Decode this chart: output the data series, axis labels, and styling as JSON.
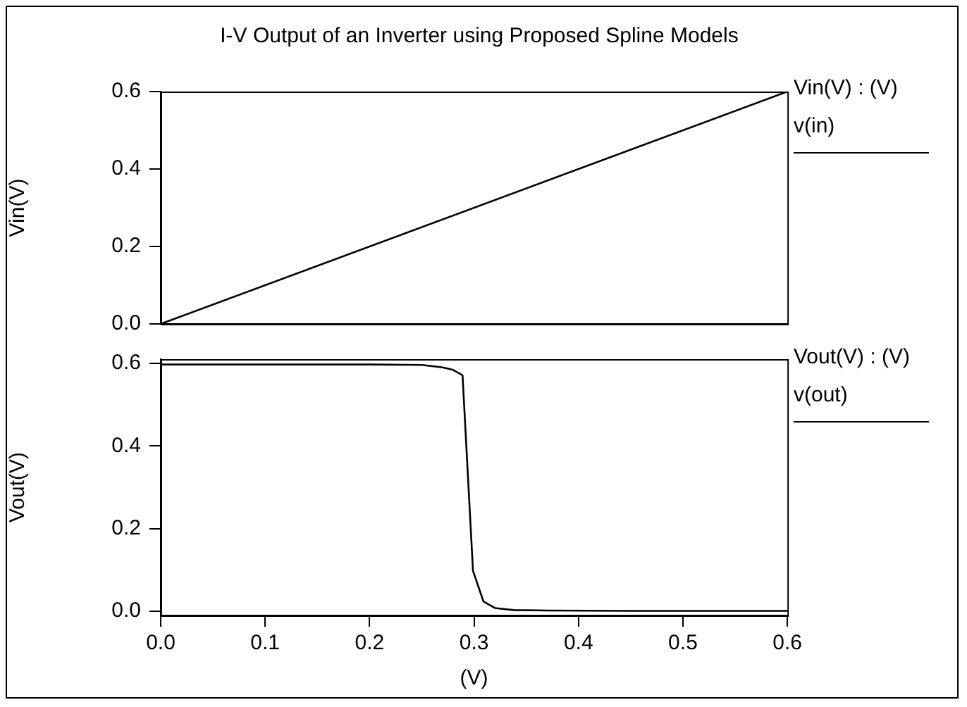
{
  "chart_data": [
    {
      "type": "line",
      "title": "I-V Output of an Inverter using Proposed Spline Models",
      "ylabel": "Vin(V)",
      "legend_title": "Vin(V) : (V)",
      "legend": "right",
      "grid": false,
      "tick_labels": "y",
      "marker": "none",
      "xlim": [
        0,
        0.6
      ],
      "ylim": [
        0,
        0.6
      ],
      "yticks": [
        {
          "value": 0,
          "label": "0.0"
        },
        0.2,
        0.4,
        0.6
      ],
      "series": [
        {
          "name": "v(in)",
          "color": "#000000",
          "x": [
            0,
            0.6
          ],
          "values": [
            0,
            0.6
          ]
        }
      ]
    },
    {
      "type": "line",
      "xlabel": "(V)",
      "ylabel": "Vout(V)",
      "legend_title": "Vout(V) : (V)",
      "legend": "right",
      "grid": false,
      "marker": "none",
      "xlim": [
        0,
        0.6
      ],
      "xticks": [
        {
          "value": 0,
          "label": "0.0"
        },
        0.1,
        0.2,
        0.3,
        0.4,
        0.5,
        0.6
      ],
      "ylim": [
        -0.01,
        0.61
      ],
      "yticks": [
        {
          "value": 0,
          "label": "0.0"
        },
        0.2,
        0.4,
        0.6
      ],
      "series": [
        {
          "name": "v(out)",
          "color": "#000000",
          "x": [
            0,
            0.1,
            0.2,
            0.25,
            0.27,
            0.28,
            0.289,
            0.299,
            0.309,
            0.32,
            0.338,
            0.37,
            0.45,
            0.6
          ],
          "values": [
            0.597,
            0.597,
            0.597,
            0.596,
            0.59,
            0.584,
            0.571,
            0.098,
            0.024,
            0.008,
            0.003,
            0.002,
            0.001,
            0.001
          ]
        }
      ]
    }
  ]
}
